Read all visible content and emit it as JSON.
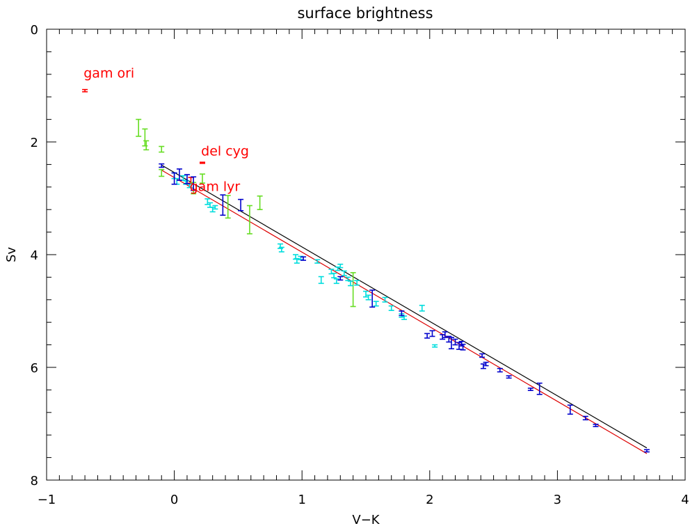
{
  "chart_data": {
    "type": "scatter",
    "title": "surface brightness",
    "xlabel": "V−K",
    "ylabel": "Sv",
    "xlim": [
      -1,
      4
    ],
    "ylim": [
      8,
      0
    ],
    "y_inverted": true,
    "grid": false,
    "legend": "none",
    "xticks": [
      -1,
      0,
      1,
      2,
      3,
      4
    ],
    "xtick_labels": [
      "−1",
      "0",
      "1",
      "2",
      "3",
      "4"
    ],
    "yticks": [
      0,
      2,
      4,
      6,
      8
    ],
    "ytick_labels": [
      "0",
      "2",
      "4",
      "6",
      "8"
    ],
    "colors": {
      "axis": "#000000",
      "red": "#ff0000",
      "green": "#66dd22",
      "cyan": "#00dddd",
      "blue": "#0000cc",
      "fit_black": "#000000",
      "fit_red": "#dd0000"
    },
    "annotations": [
      {
        "text": "gam ori",
        "x": -0.71,
        "y": 0.86
      },
      {
        "text": "del cyg",
        "x": 0.21,
        "y": 2.24
      },
      {
        "text": "gam lyr",
        "x": 0.12,
        "y": 2.87
      }
    ],
    "fits": [
      {
        "color": "fit_black",
        "x": [
          -0.1,
          3.7
        ],
        "y": [
          2.41,
          7.43
        ]
      },
      {
        "color": "fit_red",
        "x": [
          -0.1,
          3.7
        ],
        "y": [
          2.5,
          7.53
        ]
      }
    ],
    "series": [
      {
        "color": "red",
        "points": [
          {
            "x": -0.7,
            "y": 1.09,
            "err": 0.02
          },
          {
            "x": 0.22,
            "y": 2.37,
            "err": 0.01
          },
          {
            "x": 0.13,
            "y": 2.68,
            "err": 0.05
          }
        ]
      },
      {
        "color": "green",
        "points": [
          {
            "x": -0.28,
            "y": 1.75,
            "err": 0.15
          },
          {
            "x": -0.23,
            "y": 1.92,
            "err": 0.15
          },
          {
            "x": -0.22,
            "y": 2.06,
            "err": 0.08
          },
          {
            "x": -0.1,
            "y": 2.13,
            "err": 0.05
          },
          {
            "x": -0.1,
            "y": 2.55,
            "err": 0.06
          },
          {
            "x": 0.22,
            "y": 2.65,
            "err": 0.08
          },
          {
            "x": 0.42,
            "y": 3.15,
            "err": 0.2
          },
          {
            "x": 0.59,
            "y": 3.38,
            "err": 0.25
          },
          {
            "x": 0.67,
            "y": 3.08,
            "err": 0.12
          },
          {
            "x": 1.4,
            "y": 4.62,
            "err": 0.3
          },
          {
            "x": 0.15,
            "y": 2.82,
            "err": 0.1
          }
        ]
      },
      {
        "color": "cyan",
        "points": [
          {
            "x": 0.0,
            "y": 2.6,
            "err": 0.05
          },
          {
            "x": 0.02,
            "y": 2.7,
            "err": 0.05
          },
          {
            "x": 0.07,
            "y": 2.64,
            "err": 0.04
          },
          {
            "x": 0.09,
            "y": 2.72,
            "err": 0.03
          },
          {
            "x": 0.12,
            "y": 2.78,
            "err": 0.03
          },
          {
            "x": 0.26,
            "y": 3.06,
            "err": 0.05
          },
          {
            "x": 0.28,
            "y": 3.12,
            "err": 0.04
          },
          {
            "x": 0.3,
            "y": 3.2,
            "err": 0.04
          },
          {
            "x": 0.32,
            "y": 3.16,
            "err": 0.03
          },
          {
            "x": 0.83,
            "y": 3.85,
            "err": 0.04
          },
          {
            "x": 0.84,
            "y": 3.91,
            "err": 0.04
          },
          {
            "x": 0.95,
            "y": 4.04,
            "err": 0.04
          },
          {
            "x": 0.96,
            "y": 4.11,
            "err": 0.04
          },
          {
            "x": 0.99,
            "y": 4.06,
            "err": 0.03
          },
          {
            "x": 1.12,
            "y": 4.12,
            "err": 0.03
          },
          {
            "x": 1.15,
            "y": 4.45,
            "err": 0.06
          },
          {
            "x": 1.23,
            "y": 4.3,
            "err": 0.04
          },
          {
            "x": 1.25,
            "y": 4.37,
            "err": 0.04
          },
          {
            "x": 1.27,
            "y": 4.47,
            "err": 0.04
          },
          {
            "x": 1.28,
            "y": 4.25,
            "err": 0.03
          },
          {
            "x": 1.3,
            "y": 4.2,
            "err": 0.03
          },
          {
            "x": 1.33,
            "y": 4.33,
            "err": 0.04
          },
          {
            "x": 1.36,
            "y": 4.43,
            "err": 0.03
          },
          {
            "x": 1.38,
            "y": 4.51,
            "err": 0.04
          },
          {
            "x": 1.43,
            "y": 4.5,
            "err": 0.04
          },
          {
            "x": 1.5,
            "y": 4.7,
            "err": 0.05
          },
          {
            "x": 1.52,
            "y": 4.76,
            "err": 0.04
          },
          {
            "x": 1.58,
            "y": 4.87,
            "err": 0.04
          },
          {
            "x": 1.65,
            "y": 4.8,
            "err": 0.04
          },
          {
            "x": 1.7,
            "y": 4.95,
            "err": 0.04
          },
          {
            "x": 1.78,
            "y": 5.08,
            "err": 0.03
          },
          {
            "x": 1.8,
            "y": 5.12,
            "err": 0.03
          },
          {
            "x": 1.94,
            "y": 4.95,
            "err": 0.05
          },
          {
            "x": 2.04,
            "y": 5.62,
            "err": 0.02
          }
        ]
      },
      {
        "color": "blue",
        "points": [
          {
            "x": -0.1,
            "y": 2.42,
            "err": 0.03
          },
          {
            "x": 0.0,
            "y": 2.65,
            "err": 0.1
          },
          {
            "x": 0.04,
            "y": 2.58,
            "err": 0.1
          },
          {
            "x": 0.1,
            "y": 2.66,
            "err": 0.08
          },
          {
            "x": 0.15,
            "y": 2.74,
            "err": 0.12
          },
          {
            "x": 0.38,
            "y": 3.12,
            "err": 0.18
          },
          {
            "x": 0.52,
            "y": 3.12,
            "err": 0.1
          },
          {
            "x": 1.01,
            "y": 4.07,
            "err": 0.03
          },
          {
            "x": 1.3,
            "y": 4.42,
            "err": 0.03
          },
          {
            "x": 1.55,
            "y": 4.78,
            "err": 0.15
          },
          {
            "x": 1.78,
            "y": 5.04,
            "err": 0.04
          },
          {
            "x": 1.98,
            "y": 5.44,
            "err": 0.04
          },
          {
            "x": 2.02,
            "y": 5.4,
            "err": 0.05
          },
          {
            "x": 2.1,
            "y": 5.46,
            "err": 0.04
          },
          {
            "x": 2.12,
            "y": 5.42,
            "err": 0.05
          },
          {
            "x": 2.15,
            "y": 5.5,
            "err": 0.05
          },
          {
            "x": 2.17,
            "y": 5.57,
            "err": 0.1
          },
          {
            "x": 2.2,
            "y": 5.55,
            "err": 0.05
          },
          {
            "x": 2.23,
            "y": 5.62,
            "err": 0.06
          },
          {
            "x": 2.26,
            "y": 5.64,
            "err": 0.05
          },
          {
            "x": 2.25,
            "y": 5.58,
            "err": 0.04
          },
          {
            "x": 2.41,
            "y": 5.79,
            "err": 0.03
          },
          {
            "x": 2.42,
            "y": 5.98,
            "err": 0.04
          },
          {
            "x": 2.44,
            "y": 5.94,
            "err": 0.03
          },
          {
            "x": 2.55,
            "y": 6.05,
            "err": 0.03
          },
          {
            "x": 2.62,
            "y": 6.17,
            "err": 0.02
          },
          {
            "x": 2.79,
            "y": 6.39,
            "err": 0.02
          },
          {
            "x": 2.86,
            "y": 6.38,
            "err": 0.1
          },
          {
            "x": 3.1,
            "y": 6.75,
            "err": 0.08
          },
          {
            "x": 3.22,
            "y": 6.9,
            "err": 0.03
          },
          {
            "x": 3.3,
            "y": 7.03,
            "err": 0.02
          },
          {
            "x": 3.7,
            "y": 7.48,
            "err": 0.02
          }
        ]
      }
    ]
  }
}
